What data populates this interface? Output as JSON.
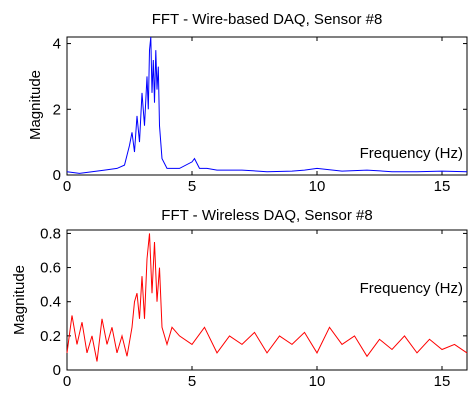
{
  "chart_data": [
    {
      "type": "line",
      "title": "FFT - Wire-based DAQ, Sensor #8",
      "xlabel": "Frequency (Hz)",
      "ylabel": "Magnitude",
      "xlim": [
        0,
        16
      ],
      "ylim": [
        0,
        4.2
      ],
      "xticks": [
        "0",
        "5",
        "10",
        "15"
      ],
      "yticks": [
        "0",
        "2",
        "4"
      ],
      "ytick_values": [
        0,
        2,
        4
      ],
      "xtick_values": [
        0,
        5,
        10,
        15
      ],
      "grid": false,
      "color": "#0000ff",
      "series": [
        {
          "x": [
            0,
            0.5,
            1,
            1.5,
            2,
            2.3,
            2.5,
            2.6,
            2.7,
            2.8,
            2.9,
            3.0,
            3.1,
            3.2,
            3.25,
            3.3,
            3.35,
            3.4,
            3.45,
            3.5,
            3.55,
            3.6,
            3.65,
            3.7,
            3.8,
            4.0,
            4.5,
            5.0,
            5.1,
            5.3,
            5.6,
            6,
            7,
            8,
            9,
            9.5,
            10,
            11,
            12,
            13,
            14,
            15,
            16
          ],
          "y": [
            0.1,
            0.05,
            0.1,
            0.15,
            0.2,
            0.3,
            0.9,
            1.3,
            0.7,
            1.8,
            1.0,
            2.5,
            1.5,
            3.0,
            2.0,
            3.8,
            4.2,
            2.5,
            3.5,
            2.2,
            3.8,
            2.6,
            3.3,
            1.5,
            0.5,
            0.2,
            0.2,
            0.4,
            0.5,
            0.2,
            0.2,
            0.15,
            0.15,
            0.1,
            0.12,
            0.15,
            0.2,
            0.12,
            0.15,
            0.1,
            0.1,
            0.12,
            0.1
          ]
        }
      ]
    },
    {
      "type": "line",
      "title": "FFT - Wireless DAQ, Sensor #8",
      "xlabel": "Frequency (Hz)",
      "ylabel": "Magnitude",
      "xlim": [
        0,
        16
      ],
      "ylim": [
        0,
        0.82
      ],
      "xticks": [
        "0",
        "5",
        "10",
        "15"
      ],
      "yticks": [
        "0",
        "0.2",
        "0.4",
        "0.6",
        "0.8"
      ],
      "ytick_values": [
        0,
        0.2,
        0.4,
        0.6,
        0.8
      ],
      "xtick_values": [
        0,
        5,
        10,
        15
      ],
      "grid": false,
      "color": "#ff0000",
      "series": [
        {
          "x": [
            0,
            0.2,
            0.4,
            0.6,
            0.8,
            1.0,
            1.2,
            1.4,
            1.6,
            1.8,
            2.0,
            2.2,
            2.4,
            2.6,
            2.7,
            2.8,
            2.9,
            3.0,
            3.1,
            3.2,
            3.3,
            3.4,
            3.5,
            3.6,
            3.7,
            3.8,
            4.0,
            4.2,
            4.5,
            5.0,
            5.5,
            6.0,
            6.5,
            7.0,
            7.5,
            8.0,
            8.5,
            9.0,
            9.5,
            10.0,
            10.5,
            11.0,
            11.5,
            12.0,
            12.5,
            13.0,
            13.5,
            14.0,
            14.5,
            15.0,
            15.5,
            16.0
          ],
          "y": [
            0.1,
            0.32,
            0.15,
            0.28,
            0.1,
            0.2,
            0.05,
            0.3,
            0.15,
            0.25,
            0.1,
            0.2,
            0.08,
            0.25,
            0.4,
            0.45,
            0.3,
            0.55,
            0.3,
            0.65,
            0.8,
            0.45,
            0.75,
            0.4,
            0.6,
            0.25,
            0.15,
            0.25,
            0.2,
            0.15,
            0.25,
            0.1,
            0.2,
            0.15,
            0.22,
            0.1,
            0.2,
            0.15,
            0.22,
            0.1,
            0.25,
            0.15,
            0.2,
            0.08,
            0.18,
            0.12,
            0.2,
            0.1,
            0.18,
            0.12,
            0.15,
            0.1
          ]
        }
      ]
    }
  ]
}
